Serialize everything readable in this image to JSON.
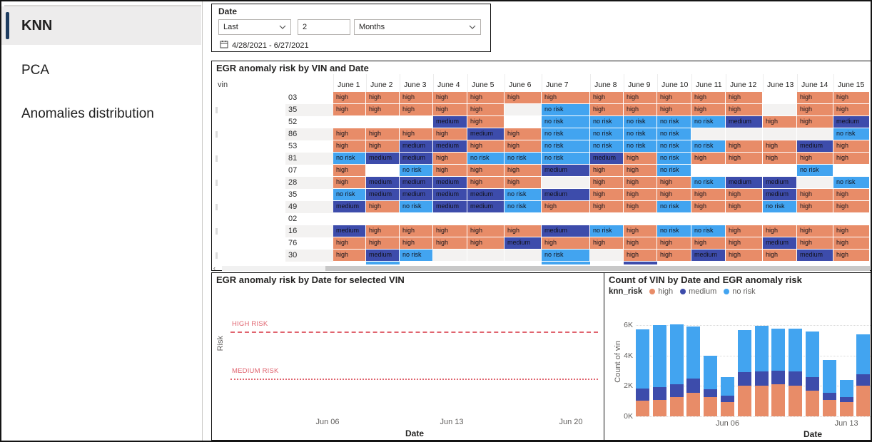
{
  "sidebar": {
    "items": [
      {
        "label": "KNN",
        "active": true
      },
      {
        "label": "PCA",
        "active": false
      },
      {
        "label": "Anomalies distribution",
        "active": false
      }
    ]
  },
  "date_filter": {
    "title": "Date",
    "mode": "Last",
    "value": "2",
    "unit": "Months",
    "range": "4/28/2021 - 6/27/2021"
  },
  "colors": {
    "high": "#E88C68",
    "medium": "#3D4CAB",
    "no_risk": "#42A4F0",
    "risk_line": "#E0646F",
    "accent_nav": "#1e3c5f"
  },
  "matrix": {
    "title": "EGR anomaly risk by VIN and Date",
    "row_header": "vin",
    "columns": [
      "June 1",
      "June 2",
      "June 3",
      "June 4",
      "June 5",
      "June 6",
      "June 7",
      "June 8",
      "June 9",
      "June 10",
      "June 11",
      "June 12",
      "June 13",
      "June 14",
      "June 15"
    ],
    "rows": [
      {
        "vin": "03",
        "cells": [
          "high",
          "high",
          "high",
          "high",
          "high",
          "high",
          "high",
          "high",
          "high",
          "high",
          "high",
          "high",
          "",
          "high",
          "high"
        ]
      },
      {
        "vin": "35",
        "cells": [
          "high",
          "high",
          "high",
          "high",
          "high",
          "",
          "no risk",
          "high",
          "high",
          "high",
          "high",
          "high",
          "",
          "high",
          "high"
        ]
      },
      {
        "vin": "52",
        "cells": [
          "",
          "",
          "",
          "medium",
          "high",
          "",
          "no risk",
          "no risk",
          "no risk",
          "no risk",
          "no risk",
          "medium",
          "high",
          "high",
          "medium"
        ]
      },
      {
        "vin": "86",
        "cells": [
          "high",
          "high",
          "high",
          "high",
          "medium",
          "high",
          "no risk",
          "no risk",
          "no risk",
          "no risk",
          "",
          "",
          "",
          "",
          "no risk"
        ]
      },
      {
        "vin": "53",
        "cells": [
          "high",
          "high",
          "medium",
          "medium",
          "high",
          "high",
          "no risk",
          "no risk",
          "no risk",
          "no risk",
          "no risk",
          "high",
          "high",
          "medium",
          "high"
        ]
      },
      {
        "vin": "81",
        "cells": [
          "no risk",
          "medium",
          "medium",
          "high",
          "no risk",
          "no risk",
          "no risk",
          "medium",
          "high",
          "no risk",
          "high",
          "high",
          "high",
          "high",
          "high"
        ]
      },
      {
        "vin": "07",
        "cells": [
          "high",
          "",
          "no risk",
          "high",
          "high",
          "high",
          "medium",
          "high",
          "high",
          "no risk",
          "",
          "",
          "",
          "no risk",
          ""
        ]
      },
      {
        "vin": "28",
        "cells": [
          "high",
          "medium",
          "medium",
          "medium",
          "high",
          "high",
          "",
          "high",
          "high",
          "high",
          "no risk",
          "medium",
          "medium",
          "",
          "no risk"
        ]
      },
      {
        "vin": "35",
        "cells": [
          "no risk",
          "medium",
          "medium",
          "medium",
          "medium",
          "no risk",
          "medium",
          "high",
          "high",
          "high",
          "high",
          "high",
          "medium",
          "high",
          "high"
        ]
      },
      {
        "vin": "49",
        "cells": [
          "medium",
          "high",
          "no risk",
          "medium",
          "medium",
          "no risk",
          "high",
          "high",
          "high",
          "no risk",
          "high",
          "high",
          "no risk",
          "high",
          "high"
        ]
      },
      {
        "vin": "02",
        "cells": [
          "",
          "",
          "",
          "",
          "",
          "",
          "",
          "",
          "",
          "",
          "",
          "",
          "",
          "",
          ""
        ]
      },
      {
        "vin": "16",
        "cells": [
          "medium",
          "high",
          "high",
          "high",
          "high",
          "high",
          "medium",
          "no risk",
          "high",
          "no risk",
          "no risk",
          "high",
          "high",
          "high",
          "high"
        ]
      },
      {
        "vin": "76",
        "cells": [
          "high",
          "high",
          "high",
          "high",
          "high",
          "medium",
          "high",
          "high",
          "high",
          "high",
          "high",
          "high",
          "medium",
          "high",
          "high"
        ]
      },
      {
        "vin": "30",
        "cells": [
          "high",
          "medium",
          "no risk",
          "",
          "",
          "",
          "no risk",
          "",
          "high",
          "high",
          "medium",
          "high",
          "high",
          "medium",
          "high"
        ]
      }
    ],
    "partial_row_cells": [
      "",
      "no risk",
      "",
      "",
      "",
      "",
      "no risk",
      "",
      "medium",
      "",
      "",
      "",
      "",
      "",
      ""
    ]
  },
  "line_chart": {
    "title": "EGR anomaly risk by Date for selected VIN",
    "y_axis_label": "Risk",
    "x_axis_label": "Date",
    "high_line_label": "HIGH RISK",
    "medium_line_label": "MEDIUM RISK"
  },
  "bar_chart": {
    "title": "Count of VIN by Date and EGR anomaly risk",
    "legend_title": "knn_risk",
    "legend": [
      "high",
      "medium",
      "no risk"
    ],
    "y_axis_label": "Count of vin",
    "x_axis_label": "Date",
    "y_ticks": [
      "0K",
      "2K",
      "4K",
      "6K"
    ],
    "x_ticks": [
      "Jun 06",
      "Jun 13"
    ]
  },
  "chart_data": [
    {
      "type": "line",
      "title": "EGR anomaly risk by Date for selected VIN",
      "xlabel": "Date",
      "ylabel": "Risk",
      "x_ticks": [
        "Jun 06",
        "Jun 13",
        "Jun 20"
      ],
      "series": [],
      "reference_lines": [
        {
          "label": "HIGH RISK",
          "style": "dashed"
        },
        {
          "label": "MEDIUM RISK",
          "style": "dotted"
        }
      ]
    },
    {
      "type": "bar",
      "stacked": true,
      "title": "Count of VIN by Date and EGR anomaly risk",
      "xlabel": "Date",
      "ylabel": "Count of vin",
      "values_unit": "thousands",
      "ylim": [
        0,
        6
      ],
      "y_ticks": [
        "0K",
        "2K",
        "4K",
        "6K"
      ],
      "x_ticks_shown": [
        "Jun 06",
        "Jun 13"
      ],
      "legend_position": "top",
      "categories": [
        "Jun 01",
        "Jun 02",
        "Jun 03",
        "Jun 04",
        "Jun 05",
        "Jun 06",
        "Jun 07",
        "Jun 08",
        "Jun 09",
        "Jun 10",
        "Jun 11",
        "Jun 12",
        "Jun 13",
        "Jun 14"
      ],
      "series": [
        {
          "name": "high",
          "values": [
            1.05,
            1.1,
            1.25,
            1.55,
            1.25,
            0.95,
            2.0,
            2.0,
            2.1,
            2.0,
            1.7,
            1.1,
            0.95,
            2.0
          ]
        },
        {
          "name": "medium",
          "values": [
            0.8,
            0.8,
            0.85,
            0.95,
            0.55,
            0.4,
            0.9,
            0.95,
            0.9,
            0.95,
            0.9,
            0.45,
            0.3,
            0.75
          ]
        },
        {
          "name": "no risk",
          "values": [
            3.85,
            4.1,
            3.95,
            3.4,
            2.2,
            1.25,
            2.75,
            3.0,
            2.75,
            2.8,
            3.0,
            2.15,
            1.15,
            2.65
          ]
        }
      ]
    }
  ]
}
